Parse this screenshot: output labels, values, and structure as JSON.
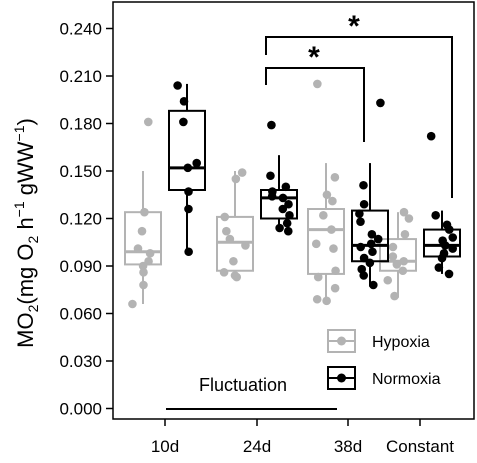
{
  "chart_data": {
    "type": "boxplot",
    "ylabel": "MO2(mg O2 h-1 gWW-1)",
    "ylim": [
      0.0,
      0.24
    ],
    "yticks": [
      0.0,
      0.03,
      0.06,
      0.09,
      0.12,
      0.15,
      0.18,
      0.21,
      0.24
    ],
    "ytick_labels": [
      "0.000",
      "0.030",
      "0.060",
      "0.090",
      "0.120",
      "0.150",
      "0.180",
      "0.210",
      "0.240"
    ],
    "categories": [
      "10d",
      "24d",
      "38d",
      "Constant"
    ],
    "grid": false,
    "legend_position": "bottom-right",
    "colors": {
      "Hypoxia": "#b3b3b3",
      "Normoxia": "#000000"
    },
    "group_annotation": {
      "label": "Fluctuation",
      "spans": [
        "10d",
        "38d"
      ]
    },
    "significance": [
      {
        "from": "24d Normoxia",
        "to": "38d Normoxia",
        "label": "*"
      },
      {
        "from": "24d Normoxia",
        "to": "Constant Normoxia",
        "label": "*"
      }
    ],
    "series": [
      {
        "name": "Hypoxia",
        "boxes": [
          {
            "category": "10d",
            "q1": 0.091,
            "median": 0.099,
            "q3": 0.124,
            "whisker_low": 0.066,
            "whisker_high": 0.15,
            "points": [
              0.181,
              0.124,
              0.112,
              0.101,
              0.098,
              0.093,
              0.09,
              0.086,
              0.078,
              0.066
            ]
          },
          {
            "category": "24d",
            "q1": 0.087,
            "median": 0.105,
            "q3": 0.121,
            "whisker_low": 0.082,
            "whisker_high": 0.15,
            "points": [
              0.149,
              0.145,
              0.121,
              0.112,
              0.107,
              0.103,
              0.093,
              0.086,
              0.084,
              0.083
            ]
          },
          {
            "category": "38d",
            "q1": 0.085,
            "median": 0.113,
            "q3": 0.126,
            "whisker_low": 0.067,
            "whisker_high": 0.155,
            "points": [
              0.205,
              0.146,
              0.135,
              0.131,
              0.122,
              0.113,
              0.104,
              0.101,
              0.087,
              0.083,
              0.076,
              0.069,
              0.068
            ]
          },
          {
            "category": "Constant",
            "q1": 0.087,
            "median": 0.093,
            "q3": 0.107,
            "whisker_low": 0.07,
            "whisker_high": 0.124,
            "points": [
              0.124,
              0.12,
              0.11,
              0.102,
              0.096,
              0.093,
              0.091,
              0.087,
              0.081,
              0.071
            ]
          }
        ]
      },
      {
        "name": "Normoxia",
        "boxes": [
          {
            "category": "10d",
            "q1": 0.138,
            "median": 0.152,
            "q3": 0.188,
            "whisker_low": 0.098,
            "whisker_high": 0.205,
            "points": [
              0.204,
              0.194,
              0.181,
              0.155,
              0.152,
              0.137,
              0.126,
              0.099
            ]
          },
          {
            "category": "24d",
            "q1": 0.12,
            "median": 0.133,
            "q3": 0.138,
            "whisker_low": 0.112,
            "whisker_high": 0.16,
            "points": [
              0.179,
              0.147,
              0.14,
              0.137,
              0.134,
              0.133,
              0.129,
              0.126,
              0.122,
              0.117,
              0.114,
              0.112
            ]
          },
          {
            "category": "38d",
            "q1": 0.093,
            "median": 0.103,
            "q3": 0.125,
            "whisker_low": 0.077,
            "whisker_high": 0.155,
            "points": [
              0.193,
              0.141,
              0.129,
              0.123,
              0.118,
              0.11,
              0.107,
              0.104,
              0.102,
              0.099,
              0.095,
              0.092,
              0.088,
              0.084,
              0.078
            ]
          },
          {
            "category": "Constant",
            "q1": 0.096,
            "median": 0.103,
            "q3": 0.113,
            "whisker_low": 0.085,
            "whisker_high": 0.125,
            "points": [
              0.172,
              0.122,
              0.116,
              0.113,
              0.108,
              0.106,
              0.103,
              0.101,
              0.098,
              0.095,
              0.089,
              0.085
            ]
          }
        ]
      }
    ]
  },
  "legend": {
    "hypoxia_label": "Hypoxia",
    "normoxia_label": "Normoxia"
  },
  "annotations": {
    "fluctuation": "Fluctuation",
    "star": "*"
  }
}
